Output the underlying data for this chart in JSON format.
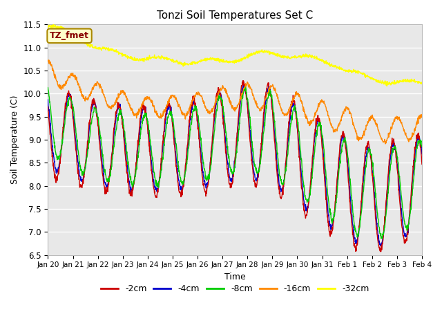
{
  "title": "Tonzi Soil Temperatures Set C",
  "xlabel": "Time",
  "ylabel": "Soil Temperature (C)",
  "ylim": [
    6.5,
    11.5
  ],
  "xlim": [
    0,
    360
  ],
  "x_tick_labels": [
    "Jan 20",
    "Jan 21",
    "Jan 22",
    "Jan 23",
    "Jan 24",
    "Jan 25",
    "Jan 26",
    "Jan 27",
    "Jan 28",
    "Jan 29",
    "Jan 30",
    "Jan 31",
    "Feb 1",
    "Feb 2",
    "Feb 3",
    "Feb 4"
  ],
  "x_tick_positions": [
    0,
    24,
    48,
    72,
    96,
    120,
    144,
    168,
    192,
    216,
    240,
    264,
    288,
    312,
    336,
    360
  ],
  "y_ticks": [
    6.5,
    7.0,
    7.5,
    8.0,
    8.5,
    9.0,
    9.5,
    10.0,
    10.5,
    11.0,
    11.5
  ],
  "colors": {
    "2cm": "#cc0000",
    "4cm": "#0000cc",
    "8cm": "#00cc00",
    "16cm": "#ff8800",
    "32cm": "#ffff00"
  },
  "legend_labels": [
    "-2cm",
    "-4cm",
    "-8cm",
    "-16cm",
    "-32cm"
  ],
  "legend_colors": [
    "#cc0000",
    "#0000cc",
    "#00cc00",
    "#ff8800",
    "#ffff00"
  ],
  "annotation_text": "TZ_fmet",
  "annotation_color": "#880000",
  "annotation_bg": "#ffffcc",
  "annotation_border": "#aa8800"
}
